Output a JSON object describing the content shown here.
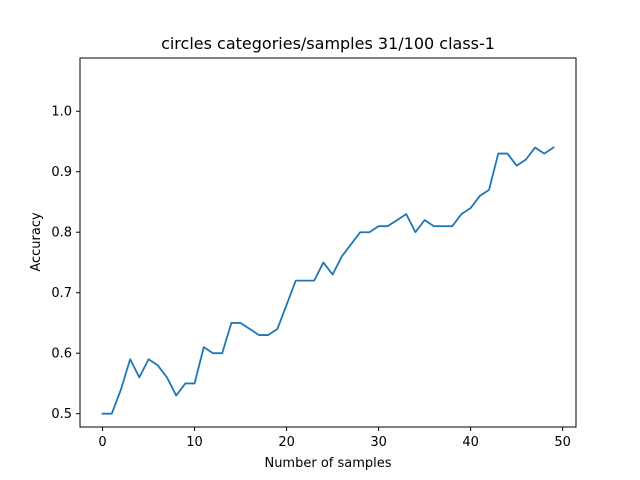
{
  "chart_data": {
    "type": "line",
    "title": "circles categories/samples 31/100 class-1",
    "xlabel": "Number of samples",
    "ylabel": "Accuracy",
    "xlim": [
      -2.45,
      51.45
    ],
    "ylim": [
      0.478,
      1.088
    ],
    "xticks": [
      0,
      10,
      20,
      30,
      40,
      50
    ],
    "yticks": [
      0.5,
      0.6,
      0.7,
      0.8,
      0.9,
      1.0
    ],
    "xtick_labels": [
      "0",
      "10",
      "20",
      "30",
      "40",
      "50"
    ],
    "ytick_labels": [
      "0.5",
      "0.6",
      "0.7",
      "0.8",
      "0.9",
      "1.0"
    ],
    "grid": false,
    "line_color": "#1f77b4",
    "series": [
      {
        "x": [
          0,
          1,
          2,
          3,
          4,
          5,
          6,
          7,
          8,
          9,
          10,
          11,
          12,
          13,
          14,
          15,
          16,
          17,
          18,
          19,
          20,
          21,
          22,
          23,
          24,
          25,
          26,
          27,
          28,
          29,
          30,
          31,
          32,
          33,
          34,
          35,
          36,
          37,
          38,
          39,
          40,
          41,
          42,
          43,
          44,
          45,
          46,
          47,
          48,
          49
        ],
        "values": [
          0.5,
          0.5,
          0.54,
          0.59,
          0.56,
          0.59,
          0.58,
          0.56,
          0.53,
          0.55,
          0.55,
          0.61,
          0.6,
          0.6,
          0.65,
          0.65,
          0.64,
          0.63,
          0.63,
          0.64,
          0.68,
          0.72,
          0.72,
          0.72,
          0.75,
          0.73,
          0.76,
          0.78,
          0.8,
          0.8,
          0.81,
          0.81,
          0.82,
          0.83,
          0.8,
          0.82,
          0.81,
          0.81,
          0.81,
          0.83,
          0.84,
          0.86,
          0.87,
          0.93,
          0.93,
          0.91,
          0.92,
          0.94,
          0.93,
          0.94
        ]
      }
    ]
  }
}
